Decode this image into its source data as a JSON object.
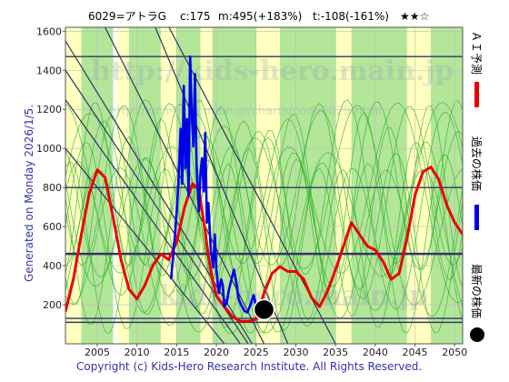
{
  "header": {
    "code": "6029=アトラG",
    "current": "c:175",
    "max_info": "m:495(+183%)",
    "target_info": "t:-108(-161%)",
    "rating": "★★☆"
  },
  "side_label": "Generated on Monday 2026/1/5.",
  "legend": {
    "ai_forecast": "ＡＩ予測",
    "past_price": "過去の株価",
    "latest_price": "最新の株価"
  },
  "watermark": {
    "main": "http://kids-hero.main.jp",
    "sub": "http://kids-hero.main.jp/charts/code6029.html",
    "bottom": "kids-hero.main.jp"
  },
  "copyright": "Copyright (c) Kids-Hero Research Institute. All Rights Reserved.",
  "colors": {
    "forecast": "#ee0000",
    "past": "#0000ee",
    "green_band": "#99dd77",
    "yellow_band": "#ffffaa",
    "green_lines": "#22aa22",
    "trend_lines": "#333366",
    "hlines": "#333366"
  },
  "chart_data": {
    "type": "line",
    "xlim": [
      2001,
      2051
    ],
    "ylim": [
      0,
      1620
    ],
    "x_ticks": [
      2005,
      2010,
      2015,
      2020,
      2025,
      2030,
      2035,
      2040,
      2045,
      2050
    ],
    "y_ticks": [
      200,
      400,
      600,
      800,
      1000,
      1200,
      1400,
      1600
    ],
    "grid": true,
    "series": [
      {
        "key": "forecast",
        "points": [
          [
            2001,
            165
          ],
          [
            2002,
            330
          ],
          [
            2003,
            560
          ],
          [
            2004,
            770
          ],
          [
            2005,
            890
          ],
          [
            2006,
            850
          ],
          [
            2007,
            650
          ],
          [
            2008,
            430
          ],
          [
            2009,
            280
          ],
          [
            2010,
            230
          ],
          [
            2011,
            300
          ],
          [
            2012,
            400
          ],
          [
            2013,
            460
          ],
          [
            2014,
            430
          ],
          [
            2015,
            520
          ],
          [
            2016,
            700
          ],
          [
            2017,
            820
          ],
          [
            2017.8,
            790
          ],
          [
            2018.5,
            600
          ],
          [
            2019,
            450
          ],
          [
            2019.5,
            330
          ],
          [
            2020,
            245
          ],
          [
            2021,
            190
          ],
          [
            2022,
            140
          ],
          [
            2023,
            115
          ],
          [
            2024,
            115
          ],
          [
            2025,
            125
          ],
          [
            2026,
            260
          ],
          [
            2027,
            360
          ],
          [
            2028,
            395
          ],
          [
            2029,
            370
          ],
          [
            2030,
            370
          ],
          [
            2031,
            330
          ],
          [
            2032,
            235
          ],
          [
            2033,
            190
          ],
          [
            2034,
            270
          ],
          [
            2035,
            380
          ],
          [
            2036,
            500
          ],
          [
            2037,
            620
          ],
          [
            2038,
            560
          ],
          [
            2039,
            500
          ],
          [
            2040,
            480
          ],
          [
            2041,
            420
          ],
          [
            2042,
            330
          ],
          [
            2043,
            360
          ],
          [
            2044,
            540
          ],
          [
            2045,
            760
          ],
          [
            2046,
            880
          ],
          [
            2047,
            905
          ],
          [
            2048,
            840
          ],
          [
            2049,
            710
          ],
          [
            2050,
            620
          ],
          [
            2051,
            560
          ]
        ]
      },
      {
        "key": "past",
        "points": [
          [
            2014.3,
            330
          ],
          [
            2014.8,
            560
          ],
          [
            2015.2,
            800
          ],
          [
            2015.5,
            1100
          ],
          [
            2015.7,
            820
          ],
          [
            2015.9,
            1320
          ],
          [
            2016.1,
            900
          ],
          [
            2016.3,
            1150
          ],
          [
            2016.5,
            760
          ],
          [
            2016.7,
            1470
          ],
          [
            2016.9,
            1180
          ],
          [
            2017.1,
            1010
          ],
          [
            2017.3,
            1380
          ],
          [
            2017.5,
            920
          ],
          [
            2017.8,
            680
          ],
          [
            2018.0,
            880
          ],
          [
            2018.2,
            950
          ],
          [
            2018.4,
            780
          ],
          [
            2018.6,
            1080
          ],
          [
            2018.8,
            620
          ],
          [
            2019.0,
            720
          ],
          [
            2019.3,
            480
          ],
          [
            2019.6,
            390
          ],
          [
            2019.8,
            560
          ],
          [
            2020.0,
            380
          ],
          [
            2020.3,
            260
          ],
          [
            2020.6,
            330
          ],
          [
            2020.8,
            300
          ],
          [
            2021.0,
            190
          ],
          [
            2021.3,
            210
          ],
          [
            2021.6,
            280
          ],
          [
            2021.9,
            330
          ],
          [
            2022.2,
            380
          ],
          [
            2022.5,
            320
          ],
          [
            2022.8,
            230
          ],
          [
            2023.1,
            200
          ],
          [
            2023.5,
            170
          ],
          [
            2023.9,
            160
          ],
          [
            2024.3,
            200
          ],
          [
            2024.7,
            250
          ],
          [
            2025.0,
            190
          ],
          [
            2025.5,
            140
          ]
        ]
      }
    ],
    "latest_point": [
      2026,
      175
    ],
    "horizontal_levels": [
      1470,
      800,
      460,
      130,
      110
    ]
  }
}
